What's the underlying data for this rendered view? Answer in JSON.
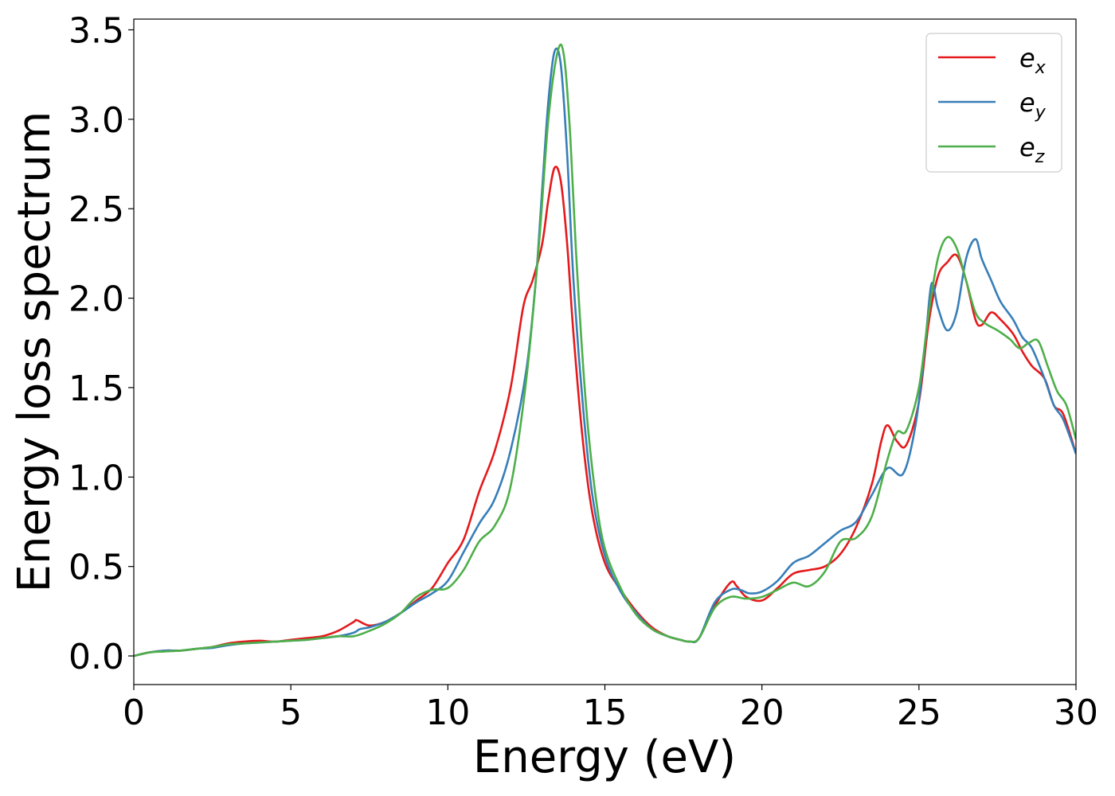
{
  "chart_data": {
    "type": "line",
    "xlabel": "Energy (eV)",
    "ylabel": "Energy loss spectrum",
    "xlim": [
      0,
      30
    ],
    "ylim": [
      -0.16,
      3.56
    ],
    "xticks": [
      0,
      5,
      10,
      15,
      20,
      25,
      30
    ],
    "xtick_labels": [
      "0",
      "5",
      "10",
      "15",
      "20",
      "25",
      "30"
    ],
    "yticks": [
      0.0,
      0.5,
      1.0,
      1.5,
      2.0,
      2.5,
      3.0,
      3.5
    ],
    "ytick_labels": [
      "0.0",
      "0.5",
      "1.0",
      "1.5",
      "2.0",
      "2.5",
      "3.0",
      "3.5"
    ],
    "grid": false,
    "legend_position": "top-right",
    "series": [
      {
        "name": "e_x",
        "label_base": "e",
        "label_sub": "x",
        "color": "#e41a1c",
        "x": [
          0,
          0.5,
          1,
          1.5,
          2,
          2.5,
          3,
          3.5,
          4,
          4.5,
          5,
          5.5,
          6,
          6.5,
          7,
          7.1,
          7.5,
          8,
          8.5,
          9,
          9.5,
          10,
          10.5,
          11,
          11.5,
          12,
          12.4,
          12.7,
          13,
          13.2,
          13.4,
          13.6,
          13.8,
          14,
          14.3,
          14.6,
          15,
          15.5,
          16,
          16.5,
          17,
          17.4,
          17.7,
          18,
          18.5,
          19,
          19.2,
          19.5,
          20,
          20.5,
          21,
          21.5,
          22,
          22.5,
          23,
          23.5,
          23.8,
          24,
          24.3,
          24.6,
          25,
          25.3,
          25.6,
          25.9,
          26.2,
          26.5,
          26.8,
          27,
          27.3,
          27.6,
          28,
          28.3,
          28.6,
          29,
          29.3,
          29.6,
          30
        ],
        "y": [
          0.0,
          0.02,
          0.03,
          0.03,
          0.04,
          0.05,
          0.07,
          0.08,
          0.085,
          0.08,
          0.09,
          0.1,
          0.11,
          0.14,
          0.19,
          0.2,
          0.17,
          0.19,
          0.24,
          0.31,
          0.38,
          0.52,
          0.65,
          0.92,
          1.15,
          1.5,
          1.95,
          2.1,
          2.3,
          2.55,
          2.73,
          2.65,
          2.3,
          1.8,
          1.2,
          0.8,
          0.52,
          0.37,
          0.25,
          0.16,
          0.11,
          0.09,
          0.08,
          0.1,
          0.28,
          0.41,
          0.39,
          0.33,
          0.31,
          0.38,
          0.46,
          0.48,
          0.5,
          0.57,
          0.72,
          0.96,
          1.2,
          1.29,
          1.2,
          1.18,
          1.42,
          1.85,
          2.12,
          2.2,
          2.24,
          2.1,
          1.88,
          1.85,
          1.92,
          1.88,
          1.8,
          1.7,
          1.62,
          1.55,
          1.4,
          1.35,
          1.13
        ]
      },
      {
        "name": "e_y",
        "label_base": "e",
        "label_sub": "y",
        "color": "#377eb8",
        "x": [
          0,
          0.5,
          1,
          1.5,
          2,
          2.5,
          3,
          3.5,
          4,
          4.5,
          5,
          5.5,
          6,
          6.5,
          7,
          7.2,
          7.5,
          8,
          8.5,
          9,
          9.5,
          10,
          10.5,
          11,
          11.5,
          12,
          12.5,
          12.8,
          13,
          13.2,
          13.4,
          13.6,
          13.8,
          14,
          14.3,
          14.6,
          15,
          15.5,
          16,
          16.5,
          17,
          17.4,
          17.7,
          18,
          18.5,
          19,
          19.3,
          19.6,
          20,
          20.5,
          21,
          21.5,
          22,
          22.5,
          23,
          23.5,
          24,
          24.5,
          24.9,
          25.2,
          25.4,
          25.6,
          25.9,
          26.2,
          26.5,
          26.8,
          27,
          27.3,
          27.6,
          28,
          28.3,
          28.6,
          29,
          29.3,
          29.6,
          30
        ],
        "y": [
          0.0,
          0.02,
          0.03,
          0.03,
          0.04,
          0.045,
          0.06,
          0.07,
          0.075,
          0.08,
          0.085,
          0.09,
          0.1,
          0.11,
          0.13,
          0.15,
          0.16,
          0.19,
          0.24,
          0.3,
          0.35,
          0.42,
          0.58,
          0.74,
          0.88,
          1.15,
          1.6,
          2.1,
          2.6,
          3.1,
          3.38,
          3.3,
          2.8,
          2.1,
          1.4,
          0.9,
          0.56,
          0.36,
          0.24,
          0.15,
          0.11,
          0.09,
          0.08,
          0.1,
          0.3,
          0.37,
          0.37,
          0.35,
          0.36,
          0.42,
          0.52,
          0.56,
          0.63,
          0.7,
          0.75,
          0.9,
          1.05,
          1.02,
          1.3,
          1.75,
          2.08,
          1.95,
          1.82,
          1.92,
          2.22,
          2.33,
          2.22,
          2.1,
          1.98,
          1.88,
          1.78,
          1.72,
          1.55,
          1.4,
          1.32,
          1.13
        ]
      },
      {
        "name": "e_z",
        "label_base": "e",
        "label_sub": "z",
        "color": "#4daf4a",
        "x": [
          0,
          0.5,
          1,
          1.5,
          2,
          2.5,
          3,
          3.5,
          4,
          4.5,
          5,
          5.5,
          6,
          6.5,
          7,
          7.5,
          8,
          8.5,
          9,
          9.5,
          10,
          10.5,
          11,
          11.5,
          12,
          12.5,
          12.9,
          13.2,
          13.5,
          13.7,
          13.9,
          14.1,
          14.4,
          14.7,
          15,
          15.5,
          16,
          16.5,
          17,
          17.4,
          17.7,
          18,
          18.5,
          19,
          19.5,
          20,
          20.5,
          21,
          21.5,
          22,
          22.5,
          23,
          23.5,
          24,
          24.3,
          24.6,
          25,
          25.3,
          25.6,
          25.9,
          26.2,
          26.5,
          26.8,
          27.1,
          27.5,
          27.9,
          28.2,
          28.5,
          28.8,
          29.1,
          29.4,
          29.7,
          30
        ],
        "y": [
          0.0,
          0.02,
          0.025,
          0.03,
          0.04,
          0.05,
          0.065,
          0.07,
          0.075,
          0.08,
          0.085,
          0.09,
          0.1,
          0.11,
          0.11,
          0.14,
          0.18,
          0.24,
          0.33,
          0.37,
          0.38,
          0.48,
          0.64,
          0.73,
          0.95,
          1.55,
          2.3,
          3.0,
          3.38,
          3.35,
          2.9,
          2.2,
          1.4,
          0.9,
          0.6,
          0.38,
          0.23,
          0.15,
          0.11,
          0.09,
          0.08,
          0.1,
          0.27,
          0.33,
          0.32,
          0.33,
          0.37,
          0.41,
          0.39,
          0.47,
          0.64,
          0.66,
          0.78,
          1.1,
          1.25,
          1.26,
          1.5,
          1.9,
          2.22,
          2.34,
          2.28,
          2.1,
          1.92,
          1.86,
          1.82,
          1.77,
          1.72,
          1.75,
          1.76,
          1.62,
          1.48,
          1.4,
          1.21
        ]
      }
    ]
  }
}
